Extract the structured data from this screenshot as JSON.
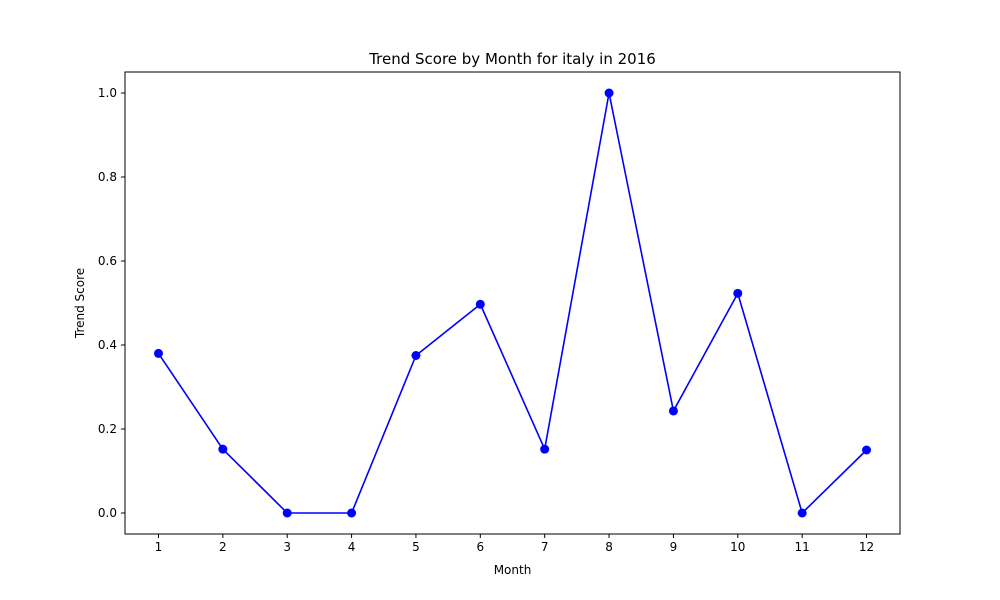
{
  "chart_data": {
    "type": "line",
    "title": "Trend Score by Month for italy in 2016",
    "xlabel": "Month",
    "ylabel": "Trend Score",
    "x": [
      1,
      2,
      3,
      4,
      5,
      6,
      7,
      8,
      9,
      10,
      11,
      12
    ],
    "y": [
      0.38,
      0.152,
      0.0,
      0.0,
      0.375,
      0.497,
      0.152,
      1.0,
      0.243,
      0.523,
      0.0,
      0.15
    ],
    "xticks": [
      "1",
      "2",
      "3",
      "4",
      "5",
      "6",
      "7",
      "8",
      "9",
      "10",
      "11",
      "12"
    ],
    "yticks": [
      "0.0",
      "0.2",
      "0.4",
      "0.6",
      "0.8",
      "1.0"
    ],
    "xlim": [
      0.48,
      12.52
    ],
    "ylim": [
      -0.05,
      1.05
    ],
    "grid": false,
    "line_color": "#0000ff",
    "marker": "circle"
  }
}
